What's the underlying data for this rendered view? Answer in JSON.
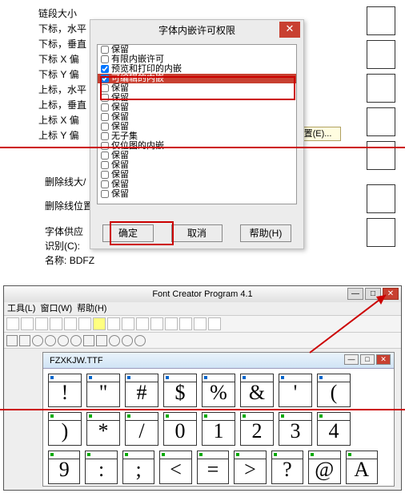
{
  "bg": {
    "labels": [
      "链段大小",
      "下标，水平",
      "下标，垂直",
      "下标 X 偏",
      "下标 Y 偏",
      "上标，水平",
      "上标，垂直",
      "上标 X 偏",
      "上标 Y 偏"
    ],
    "strike": "删除线大/",
    "strikepos": "删除线位置",
    "supplier": "字体供应",
    "id_label": "识别(C):",
    "name_label": "名称:",
    "name_value": "BDFZ"
  },
  "dlg": {
    "title": "字体内嵌许可权限",
    "items": [
      {
        "label": "保留",
        "checked": false,
        "sel": false
      },
      {
        "label": "有限内嵌许可",
        "checked": false,
        "sel": false
      },
      {
        "label": "预览和打印的内嵌",
        "checked": true,
        "sel": false
      },
      {
        "label": "可编辑的内嵌",
        "checked": true,
        "sel": true
      },
      {
        "label": "保留",
        "checked": false,
        "sel": false
      },
      {
        "label": "保留",
        "checked": false,
        "sel": false
      },
      {
        "label": "保留",
        "checked": false,
        "sel": false
      },
      {
        "label": "保留",
        "checked": false,
        "sel": false
      },
      {
        "label": "保留",
        "checked": false,
        "sel": false
      },
      {
        "label": "无子集",
        "checked": false,
        "sel": false
      },
      {
        "label": "仅位图的内嵌",
        "checked": false,
        "sel": false
      },
      {
        "label": "保留",
        "checked": false,
        "sel": false
      },
      {
        "label": "保留",
        "checked": false,
        "sel": false
      },
      {
        "label": "保留",
        "checked": false,
        "sel": false
      },
      {
        "label": "保留",
        "checked": false,
        "sel": false
      },
      {
        "label": "保留",
        "checked": false,
        "sel": false
      }
    ],
    "ok": "确定",
    "cancel": "取消",
    "help": "帮助(H)"
  },
  "yellow": "置(E)...",
  "prog": {
    "title": "Font Creator Program 4.1",
    "menu": [
      "工具(L)",
      "窗口(W)",
      "帮助(H)"
    ],
    "doc": "FZXKJW.TTF",
    "row1": [
      "!",
      "\"",
      "#",
      "$",
      "%",
      "&",
      "'",
      "("
    ],
    "row2": [
      ")",
      "*",
      "/",
      "0",
      "1",
      "2",
      "3",
      "4"
    ],
    "row3": [
      "9",
      ":",
      ";",
      "<",
      "=",
      ">",
      "?",
      "@",
      "A"
    ]
  }
}
